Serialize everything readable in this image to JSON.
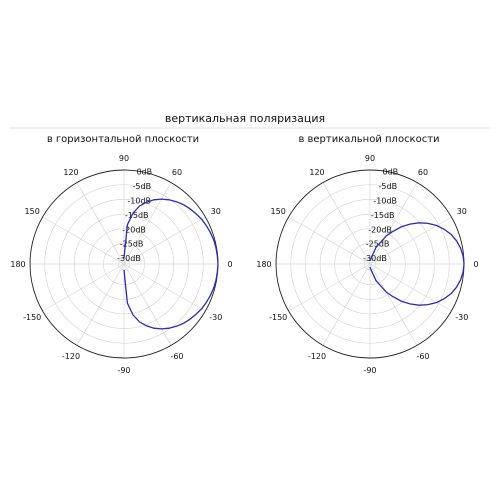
{
  "header": {
    "title": "вертикальная поляризация"
  },
  "colors": {
    "curve": "#2b2bbf",
    "outer_ring": "#222222",
    "grid": "#d8d8d8"
  },
  "chart_data": [
    {
      "type": "polar-line",
      "title": "в горизонтальной плоскости",
      "angle_unit": "deg",
      "angle_ticks": [
        "90",
        "60",
        "30",
        "0",
        "-30",
        "-60",
        "-90",
        "-120",
        "-150",
        "180",
        "150",
        "120"
      ],
      "angle_tick_values": [
        90,
        60,
        30,
        0,
        -30,
        -60,
        -90,
        -120,
        -150,
        180,
        150,
        120
      ],
      "radial_ticks": [
        "0dB",
        "-5dB",
        "-10dB",
        "-15dB",
        "-20dB",
        "-25dB",
        "-30dB"
      ],
      "radial_tick_values": [
        0,
        -5,
        -10,
        -15,
        -20,
        -25,
        -30
      ],
      "rlim": [
        -32,
        0
      ],
      "grid": true,
      "series": [
        {
          "color": "#2b2bbf",
          "theta_deg": [
            -90,
            -85,
            -80,
            -75,
            -70,
            -65,
            -60,
            -55,
            -50,
            -45,
            -40,
            -35,
            -30,
            -25,
            -20,
            -15,
            -10,
            -5,
            0,
            5,
            10,
            15,
            20,
            25,
            30,
            35,
            40,
            45,
            50,
            55,
            60,
            65,
            70,
            75,
            80,
            85,
            90
          ],
          "r_db": [
            -30,
            -18.6,
            -14.4,
            -11.6,
            -9.6,
            -7.9,
            -6.5,
            -5.3,
            -4.3,
            -3.4,
            -2.7,
            -2.1,
            -1.5,
            -1.1,
            -0.7,
            -0.4,
            -0.2,
            -0.1,
            0,
            -0.1,
            -0.2,
            -0.4,
            -0.7,
            -1.1,
            -1.5,
            -2.1,
            -2.7,
            -3.4,
            -4.3,
            -5.3,
            -6.5,
            -7.9,
            -9.6,
            -11.6,
            -14.4,
            -18.6,
            -30
          ]
        }
      ]
    },
    {
      "type": "polar-line",
      "title": "в вертикальной плоскости",
      "angle_unit": "deg",
      "angle_ticks": [
        "90",
        "60",
        "30",
        "0",
        "-30",
        "-60",
        "-90",
        "-120",
        "-150",
        "180",
        "150",
        "120"
      ],
      "angle_tick_values": [
        90,
        60,
        30,
        0,
        -30,
        -60,
        -90,
        -120,
        -150,
        180,
        150,
        120
      ],
      "radial_ticks": [
        "0dB",
        "-5dB",
        "-10dB",
        "-15dB",
        "-20dB",
        "-25dB",
        "-30dB"
      ],
      "radial_tick_values": [
        0,
        -5,
        -10,
        -15,
        -20,
        -25,
        -30
      ],
      "rlim": [
        -32,
        0
      ],
      "grid": true,
      "series": [
        {
          "color": "#2b2bbf",
          "theta_deg": [
            -90,
            -80,
            -70,
            -60,
            -55,
            -50,
            -45,
            -40,
            -35,
            -30,
            -25,
            -20,
            -15,
            -10,
            -5,
            0,
            5,
            10,
            15,
            20,
            25,
            30,
            35,
            40,
            45,
            50,
            55,
            60,
            70,
            80,
            90
          ],
          "r_db": [
            -31,
            -30,
            -26,
            -21,
            -18.5,
            -15.5,
            -12.8,
            -10.2,
            -7.9,
            -5.8,
            -4.1,
            -2.6,
            -1.5,
            -0.7,
            -0.2,
            0,
            -0.2,
            -0.7,
            -1.5,
            -2.6,
            -4.1,
            -5.8,
            -7.9,
            -10.2,
            -12.8,
            -15.5,
            -18.5,
            -21,
            -26,
            -30,
            -31
          ]
        }
      ]
    }
  ]
}
